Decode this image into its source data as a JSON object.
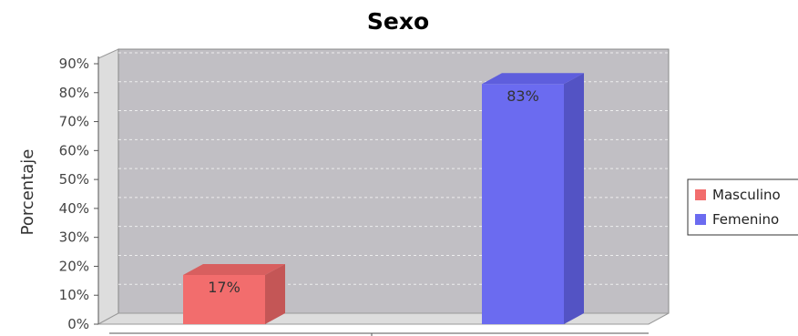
{
  "chart_data": {
    "type": "bar",
    "title": "Sexo",
    "ylabel": "Porcentaje",
    "xlabel": "",
    "ylim": [
      0,
      90
    ],
    "y_ticks": [
      0,
      10,
      20,
      30,
      40,
      50,
      60,
      70,
      80,
      90
    ],
    "y_tick_suffix": "%",
    "grid": true,
    "three_d": true,
    "legend_position": "right",
    "series": [
      {
        "name": "Masculino",
        "value": 17,
        "label": "17%",
        "color": "#f26d6d",
        "side_color": "#c45656",
        "top_color": "#d85f5f"
      },
      {
        "name": "Femenino",
        "value": 83,
        "label": "83%",
        "color": "#6b6bf0",
        "side_color": "#5353c4",
        "top_color": "#5e5edd"
      }
    ],
    "colors": {
      "plot_back": "#c1bfc4",
      "wall_side": "#dddddd",
      "floor": "#dddddd",
      "grid": "#eeeeee"
    }
  }
}
